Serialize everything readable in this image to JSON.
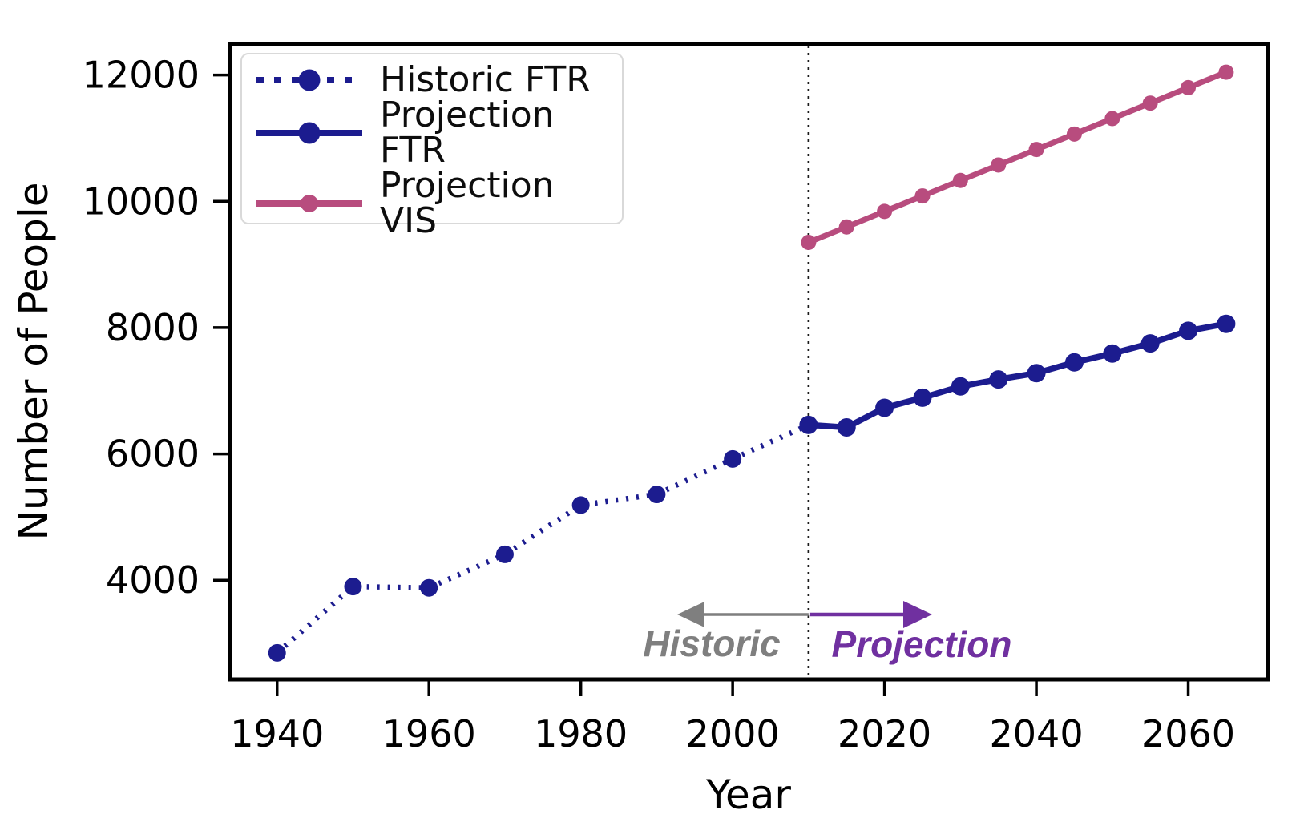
{
  "chart_data": {
    "type": "line",
    "title": "",
    "xlabel": "Year",
    "ylabel": "Number of People",
    "xlim": [
      1933.8,
      2070.5
    ],
    "ylim": [
      2430,
      12490
    ],
    "x_ticks": [
      1940,
      1960,
      1980,
      2000,
      2020,
      2040,
      2060
    ],
    "y_ticks": [
      4000,
      6000,
      8000,
      10000,
      12000
    ],
    "grid": false,
    "legend_position": "upper left",
    "series": [
      {
        "name": "Historic FTR",
        "color": "#1c1c8f",
        "line_style": "dotted",
        "line_width": 6.5,
        "marker": "circle",
        "marker_radius": 11,
        "x": [
          1940,
          1950,
          1960,
          1970,
          1980,
          1990,
          2000,
          2010
        ],
        "y": [
          2850,
          3900,
          3880,
          4410,
          5190,
          5360,
          5920,
          6460
        ]
      },
      {
        "name": "Projection FTR",
        "color": "#1c1c8f",
        "line_style": "solid",
        "line_width": 7.5,
        "marker": "circle",
        "marker_radius": 11.5,
        "x": [
          2010,
          2015,
          2020,
          2025,
          2030,
          2035,
          2040,
          2045,
          2050,
          2055,
          2060,
          2065
        ],
        "y": [
          6460,
          6420,
          6730,
          6890,
          7070,
          7180,
          7280,
          7450,
          7590,
          7750,
          7950,
          8060
        ]
      },
      {
        "name": "Projection VIS",
        "color": "#b84c7e",
        "line_style": "solid",
        "line_width": 7,
        "marker": "circle",
        "marker_radius": 9.5,
        "x": [
          2010,
          2015,
          2020,
          2025,
          2030,
          2035,
          2040,
          2045,
          2050,
          2055,
          2060,
          2065
        ],
        "y": [
          9350,
          9595,
          9840,
          10085,
          10330,
          10575,
          10820,
          11065,
          11310,
          11555,
          11800,
          12045
        ]
      }
    ],
    "annotations": {
      "divider_year": 2010,
      "divider_style": "dotted",
      "historic_label": "Historic",
      "historic_color": "#7f7f7f",
      "projection_label": "Projection",
      "projection_color": "#7030a0"
    }
  },
  "colors": {
    "spine": "#000000",
    "tick_label": "#000000",
    "legend_border": "#d9d9d9"
  }
}
